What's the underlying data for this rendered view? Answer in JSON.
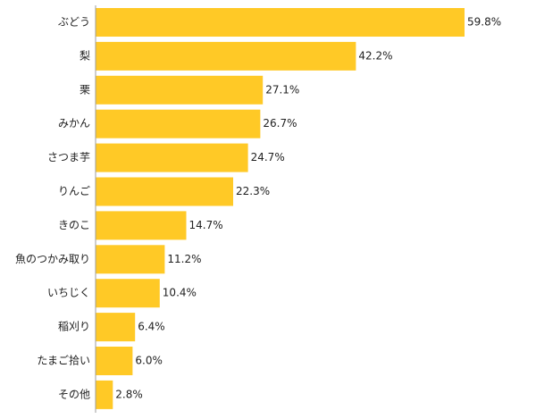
{
  "chart_data": {
    "type": "bar",
    "orientation": "horizontal",
    "categories": [
      "ぶどう",
      "梨",
      "栗",
      "みかん",
      "さつま芋",
      "りんご",
      "きのこ",
      "魚のつかみ取り",
      "いちじく",
      "稲刈り",
      "たまご拾い",
      "その他"
    ],
    "values": [
      59.8,
      42.2,
      27.1,
      26.7,
      24.7,
      22.3,
      14.7,
      11.2,
      10.4,
      6.4,
      6.0,
      2.8
    ],
    "value_labels": [
      "59.8%",
      "42.2%",
      "27.1%",
      "26.7%",
      "24.7%",
      "22.3%",
      "14.7%",
      "11.2%",
      "10.4%",
      "6.4%",
      "6.0%",
      "2.8%"
    ],
    "unit": "%",
    "bar_color": "#FFC926",
    "axis_color": "#9e9e9e",
    "grid": false,
    "legend": "none",
    "xlim": [
      0,
      65
    ],
    "title": "",
    "xlabel": "",
    "ylabel": ""
  }
}
